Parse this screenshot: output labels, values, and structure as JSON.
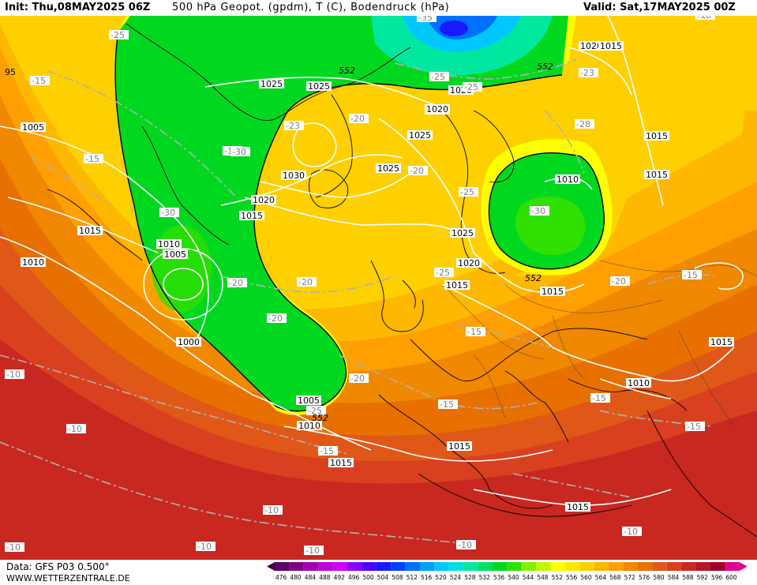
{
  "header": {
    "init": "Init: Thu,08MAY2025 06Z",
    "title": "500 hPa Geopot. (gpdm), T (C), Bodendruck (hPa)",
    "valid": "Valid: Sat,17MAY2025 00Z"
  },
  "footer": {
    "data_source": "Data: GFS P03 0.500°",
    "website": "WWW.WETTERZENTRALE.DE"
  },
  "legend": {
    "unit": "gpdm",
    "ticks": [
      "476",
      "480",
      "484",
      "488",
      "492",
      "496",
      "500",
      "504",
      "508",
      "512",
      "516",
      "520",
      "524",
      "528",
      "532",
      "536",
      "540",
      "544",
      "548",
      "552",
      "556",
      "560",
      "564",
      "568",
      "572",
      "576",
      "580",
      "584",
      "588",
      "592",
      "596",
      "600"
    ],
    "colors": [
      "#3d0040",
      "#5e0064",
      "#7c0088",
      "#9e00b0",
      "#c000d8",
      "#cf00ff",
      "#8a00ff",
      "#4c00ff",
      "#1a18ff",
      "#0040ff",
      "#0070ff",
      "#00a0ff",
      "#00c8ff",
      "#00e0e0",
      "#00e8a0",
      "#00e060",
      "#00d820",
      "#30e000",
      "#80f000",
      "#c0f800",
      "#ffff00",
      "#ffe800",
      "#ffd000",
      "#ffb800",
      "#ffa000",
      "#f08800",
      "#e87000",
      "#e05818",
      "#d84020",
      "#c82820",
      "#b81428",
      "#a00028",
      "#e0008c"
    ]
  },
  "map_labels": {
    "pressure": [
      "1025",
      "1025",
      "1025",
      "1025",
      "1005",
      "1015",
      "1010",
      "1005",
      "1000",
      "1020",
      "1015",
      "1030",
      "1025",
      "1020",
      "1025",
      "1020",
      "1015",
      "1015",
      "1020",
      "1015",
      "1010",
      "1015",
      "1015",
      "1015",
      "1010",
      "1005",
      "1010",
      "1015",
      "1015",
      "1015",
      "1010",
      "1020"
    ],
    "temperature": [
      "-25",
      "-15",
      "-15",
      "-15",
      "-30",
      "-30",
      "-23",
      "-20",
      "-20",
      "-20",
      "-20",
      "-20",
      "-20",
      "-25",
      "-25",
      "-30",
      "-25",
      "-23",
      "-28",
      "-35",
      "-25",
      "-20",
      "-15",
      "-15",
      "-15",
      "-15",
      "-15",
      "-15",
      "-10",
      "-10",
      "-10",
      "-10",
      "-10",
      "-10",
      "-10",
      "-10",
      "-10",
      "-15",
      "-25"
    ],
    "geopotential": [
      "552",
      "552",
      "552",
      "552"
    ],
    "edge": "95"
  }
}
